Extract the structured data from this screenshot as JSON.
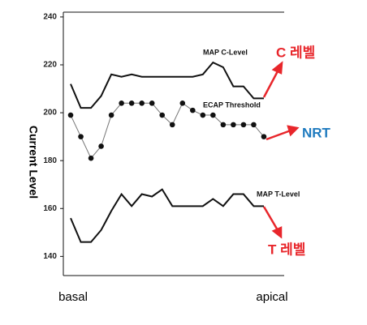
{
  "chart_data": {
    "type": "line",
    "y_label": "Current Level",
    "x_labels": [
      "basal",
      "apical"
    ],
    "x": [
      0,
      1,
      2,
      3,
      4,
      5,
      6,
      7,
      8,
      9,
      10,
      11,
      12,
      13,
      14,
      15,
      16,
      17,
      18,
      19
    ],
    "xlim": [
      -0.72,
      21
    ],
    "ylim": [
      132,
      242
    ],
    "yticks": [
      140,
      160,
      180,
      200,
      220,
      240
    ],
    "series": [
      {
        "name": "MAP C-Level",
        "color": "#111111",
        "markers": false,
        "values": [
          212,
          202,
          202,
          207,
          216,
          215,
          216,
          215,
          215,
          215,
          215,
          215,
          215,
          216,
          221,
          219,
          211,
          211,
          206,
          206
        ]
      },
      {
        "name": "ECAP Threshold",
        "color": "#777777",
        "markers": true,
        "values": [
          199,
          190,
          181,
          186,
          199,
          204,
          204,
          204,
          204,
          199,
          195,
          204,
          201,
          199,
          199,
          195,
          195,
          195,
          195,
          190
        ]
      },
      {
        "name": "MAP T-Level",
        "color": "#111111",
        "markers": false,
        "values": [
          156,
          146,
          146,
          151,
          159,
          166,
          161,
          166,
          165,
          168,
          161,
          161,
          161,
          161,
          164,
          161,
          166,
          166,
          161,
          161
        ]
      }
    ],
    "annotations": [
      {
        "text": "C 레벨",
        "color": "#e8262b"
      },
      {
        "text": "NRT",
        "color": "#1f7bbf"
      },
      {
        "text": "T 레벨",
        "color": "#e8262b"
      }
    ]
  }
}
